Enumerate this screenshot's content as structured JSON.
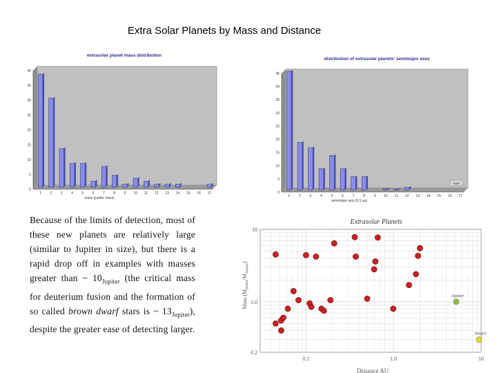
{
  "slide": {
    "title": "Extra Solar Planets by Mass and Distance",
    "paragraph": {
      "p1": "Because of the limits of detection, most of these new planets are relatively large (similar to Jupiter in size), but there is a rapid drop off in examples with masses greater than ~ 10",
      "sub1": "Jupiter",
      "p2": " (the critical mass for deuterium fusion and the formation of so called ",
      "em1": "brown dwarf",
      "p3": " stars is ~ 13",
      "sub2": "Jupiter",
      "p4": "), despite the greater ease of detecting larger."
    }
  },
  "chart_data": [
    {
      "type": "bar",
      "title": "extrasolar planet mass distribution",
      "xlabel": "mass (jupiter mass)",
      "ylabel": "",
      "categories": [
        "1",
        "2",
        "3",
        "4",
        "5",
        "6",
        "7",
        "8",
        "9",
        "10",
        "11",
        "12",
        "13",
        "14",
        "15",
        "16",
        "17"
      ],
      "values": [
        38,
        30,
        13,
        8,
        8,
        2,
        7,
        4,
        1,
        3,
        2,
        1,
        1,
        1,
        0,
        0,
        1
      ],
      "ylim": [
        0,
        40
      ],
      "yticks": [
        0,
        5,
        10,
        15,
        20,
        25,
        30,
        35,
        40
      ],
      "grid": false,
      "colors": {
        "bar": "#8a8cec",
        "plot_bg": "#c0c0c0"
      }
    },
    {
      "type": "bar",
      "title": "distribution of extrasolar planets' semimajor axes",
      "xlabel": "semimajor axis (0.5 au)",
      "ylabel": "",
      "categories": [
        "1",
        "2",
        "3",
        "4",
        "5",
        "6",
        "7",
        "8",
        "9",
        "10",
        "11",
        "12",
        "13",
        "14",
        "15",
        "16",
        "17"
      ],
      "values": [
        45,
        18,
        16,
        8,
        13,
        8,
        5,
        5,
        0,
        0.5,
        0.3,
        1,
        0,
        0,
        0,
        0,
        0
      ],
      "ylim": [
        0,
        45
      ],
      "yticks": [
        0,
        5,
        10,
        15,
        20,
        25,
        30,
        35,
        40,
        45
      ],
      "legend": {
        "label": "mais",
        "placement": "bottom-right"
      },
      "grid": false,
      "colors": {
        "bar": "#8a8cec",
        "plot_bg": "#c0c0c0"
      }
    },
    {
      "type": "scatter",
      "title": "Extrasolar Planets",
      "xlabel": "Distance AU",
      "ylabel": "Mass (M",
      "ylabel_sub1": "planet",
      "ylabel_mid": "/M",
      "ylabel_sub2": "Jupiter",
      "ylabel_end": ")",
      "xscale": "log",
      "yscale": "log",
      "xlim": [
        0.03,
        10
      ],
      "ylim": [
        0.2,
        10
      ],
      "xtick_labels": [
        "0.1",
        "1.0",
        "10"
      ],
      "xtick_values": [
        0.1,
        1,
        10
      ],
      "ytick_labels": [
        "10",
        "1.0",
        "0.2"
      ],
      "ytick_values": [
        10,
        1,
        0.2
      ],
      "grid": true,
      "points": [
        {
          "x": 0.045,
          "y": 4.5
        },
        {
          "x": 0.045,
          "y": 0.5
        },
        {
          "x": 0.052,
          "y": 0.4
        },
        {
          "x": 0.052,
          "y": 0.55
        },
        {
          "x": 0.055,
          "y": 0.6
        },
        {
          "x": 0.062,
          "y": 0.8
        },
        {
          "x": 0.072,
          "y": 1.4
        },
        {
          "x": 0.082,
          "y": 1.05
        },
        {
          "x": 0.1,
          "y": 4.4
        },
        {
          "x": 0.11,
          "y": 0.95
        },
        {
          "x": 0.115,
          "y": 0.85
        },
        {
          "x": 0.13,
          "y": 4.2
        },
        {
          "x": 0.15,
          "y": 0.8
        },
        {
          "x": 0.16,
          "y": 0.75
        },
        {
          "x": 0.19,
          "y": 1.05
        },
        {
          "x": 0.21,
          "y": 6.4
        },
        {
          "x": 0.36,
          "y": 7.8
        },
        {
          "x": 0.37,
          "y": 4.2
        },
        {
          "x": 0.5,
          "y": 1.1
        },
        {
          "x": 0.6,
          "y": 2.8
        },
        {
          "x": 0.62,
          "y": 3.6
        },
        {
          "x": 0.66,
          "y": 7.7
        },
        {
          "x": 0.99,
          "y": 0.8
        },
        {
          "x": 1.5,
          "y": 1.7
        },
        {
          "x": 1.8,
          "y": 2.4
        },
        {
          "x": 1.9,
          "y": 4.3
        },
        {
          "x": 2.0,
          "y": 5.5
        }
      ],
      "references": [
        {
          "name": "Jupiter",
          "x": 5.2,
          "y": 1.0,
          "color": "#90c040"
        },
        {
          "name": "Saturn",
          "x": 9.5,
          "y": 0.3,
          "color": "#e8e000"
        }
      ],
      "colors": {
        "point": "#cc2222",
        "point_edge": "#7a0f0f",
        "grid": "#d8d8d8"
      }
    }
  ]
}
